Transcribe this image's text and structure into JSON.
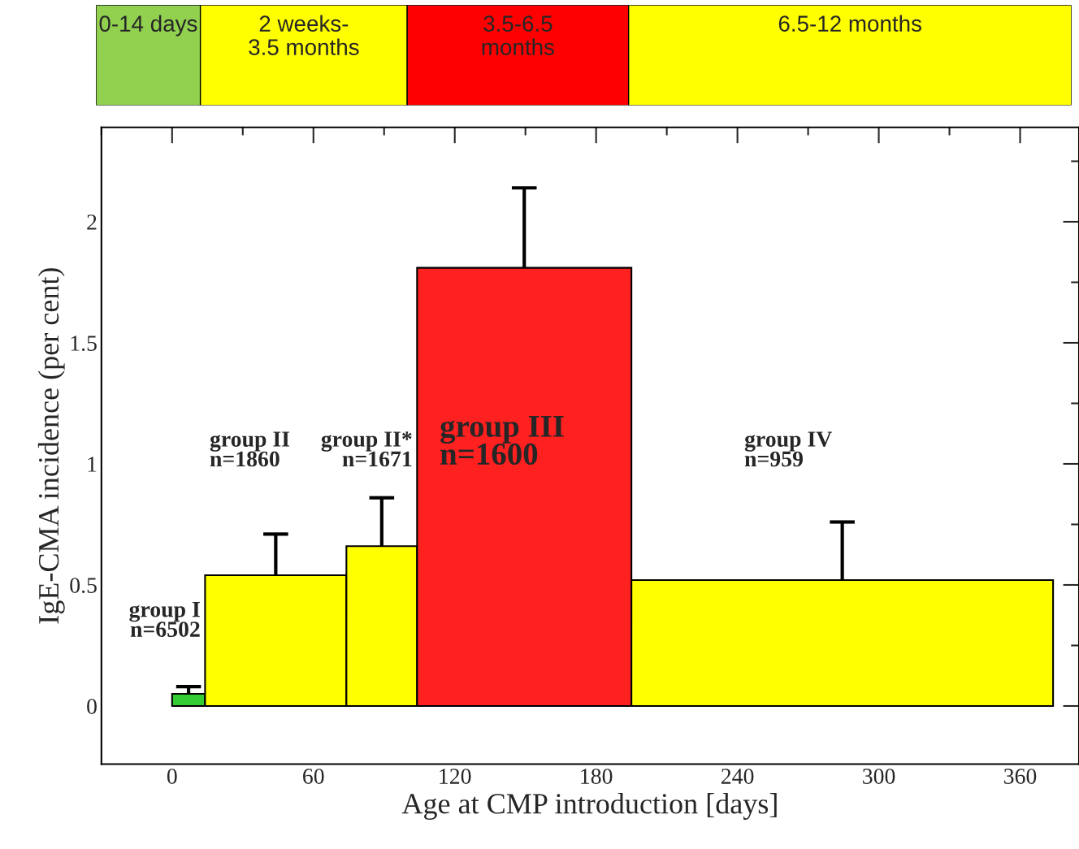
{
  "chart_data": [
    {
      "type": "other",
      "annotations": [
        "0-14 days",
        "2 weeks-\n3.5 months",
        "3.5-6.5\nmonths",
        "6.5-12 months"
      ],
      "colors": [
        "#92d050",
        "#ffff00",
        "#ff0000",
        "#ffff00"
      ]
    },
    {
      "type": "histogram",
      "xlabel": "Age at CMP introduction [days]",
      "ylabel": "IgE-CMA incidence (per cent)",
      "bins": [
        0,
        14,
        74,
        104,
        195,
        374
      ],
      "values": [
        0.05,
        0.54,
        0.66,
        1.81,
        0.52
      ],
      "colors": [
        "#33cc33",
        "#ffff00",
        "#ffff00",
        "#ff2020",
        "#ffff00"
      ],
      "errors": [
        [
          0.05,
          0.08
        ],
        [
          0.54,
          0.71
        ],
        [
          0.66,
          0.86
        ],
        [
          1.81,
          2.14
        ],
        [
          0.52,
          0.76
        ]
      ],
      "xlim": [
        -30,
        385
      ],
      "xticks": [
        0,
        60,
        120,
        180,
        240,
        300,
        360
      ],
      "ylim": [
        -0.24,
        2.39
      ],
      "yticks": [
        0,
        0.5,
        1,
        1.5,
        2
      ],
      "grid": false,
      "annotations": [
        "group I\nn=6502",
        "group II\nn=1860",
        "group II*\nn=1671",
        "group III\nn=1600",
        "group IV\nn=959"
      ]
    }
  ]
}
